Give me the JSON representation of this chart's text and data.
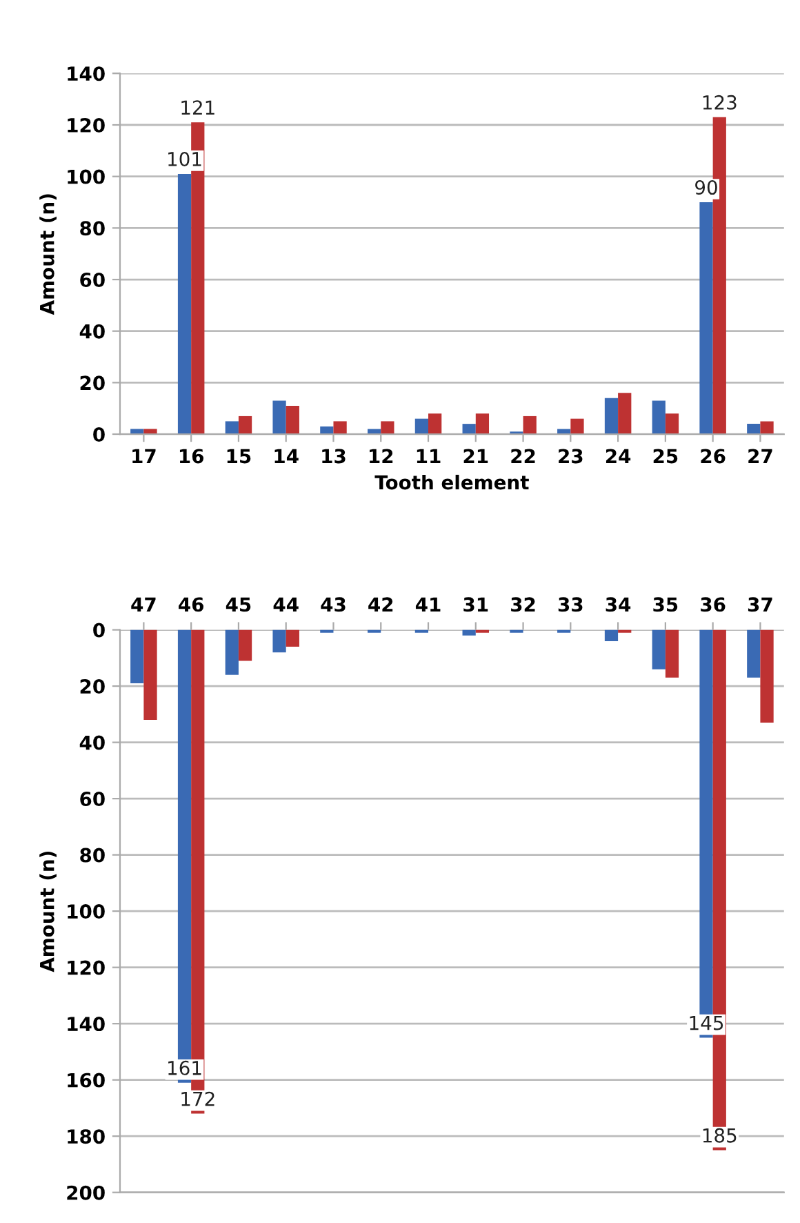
{
  "chart_data": [
    {
      "type": "bar",
      "xlabel": "Tooth element",
      "ylabel": "Amount (n)",
      "categories": [
        "17",
        "16",
        "15",
        "14",
        "13",
        "12",
        "11",
        "21",
        "22",
        "23",
        "24",
        "25",
        "26",
        "27"
      ],
      "ylim": [
        0,
        140
      ],
      "yticks": [
        0,
        20,
        40,
        60,
        80,
        100,
        120,
        140
      ],
      "grid": "y",
      "series": [
        {
          "color": "#3a6ab4",
          "values": [
            2,
            101,
            5,
            13,
            3,
            2,
            6,
            4,
            1,
            2,
            14,
            13,
            90,
            4
          ],
          "value_labels": [
            null,
            "101",
            null,
            null,
            null,
            null,
            null,
            null,
            null,
            null,
            null,
            null,
            "90",
            null
          ]
        },
        {
          "color": "#be3232",
          "values": [
            2,
            121,
            7,
            11,
            5,
            5,
            8,
            8,
            7,
            6,
            16,
            8,
            123,
            5
          ],
          "value_labels": [
            null,
            "121",
            null,
            null,
            null,
            null,
            null,
            null,
            null,
            null,
            null,
            null,
            "123",
            null
          ]
        }
      ]
    },
    {
      "type": "bar",
      "ylabel": "Amount (n)",
      "categories": [
        "47",
        "46",
        "45",
        "44",
        "43",
        "42",
        "41",
        "31",
        "32",
        "33",
        "34",
        "35",
        "36",
        "37"
      ],
      "ylim": [
        200,
        0
      ],
      "yticks": [
        0,
        20,
        40,
        60,
        80,
        100,
        120,
        140,
        160,
        180,
        200
      ],
      "grid": "y",
      "series": [
        {
          "color": "#3a6ab4",
          "values": [
            19,
            161,
            16,
            8,
            1,
            1,
            1,
            2,
            1,
            1,
            4,
            14,
            145,
            17
          ],
          "value_labels": [
            null,
            "161",
            null,
            null,
            null,
            null,
            null,
            null,
            null,
            null,
            null,
            null,
            "145",
            null
          ]
        },
        {
          "color": "#be3232",
          "values": [
            32,
            172,
            11,
            6,
            0,
            0,
            0,
            1,
            0,
            0,
            1,
            17,
            185,
            33
          ],
          "value_labels": [
            null,
            "172",
            null,
            null,
            null,
            null,
            null,
            null,
            null,
            null,
            null,
            null,
            "185",
            null
          ]
        }
      ]
    }
  ]
}
